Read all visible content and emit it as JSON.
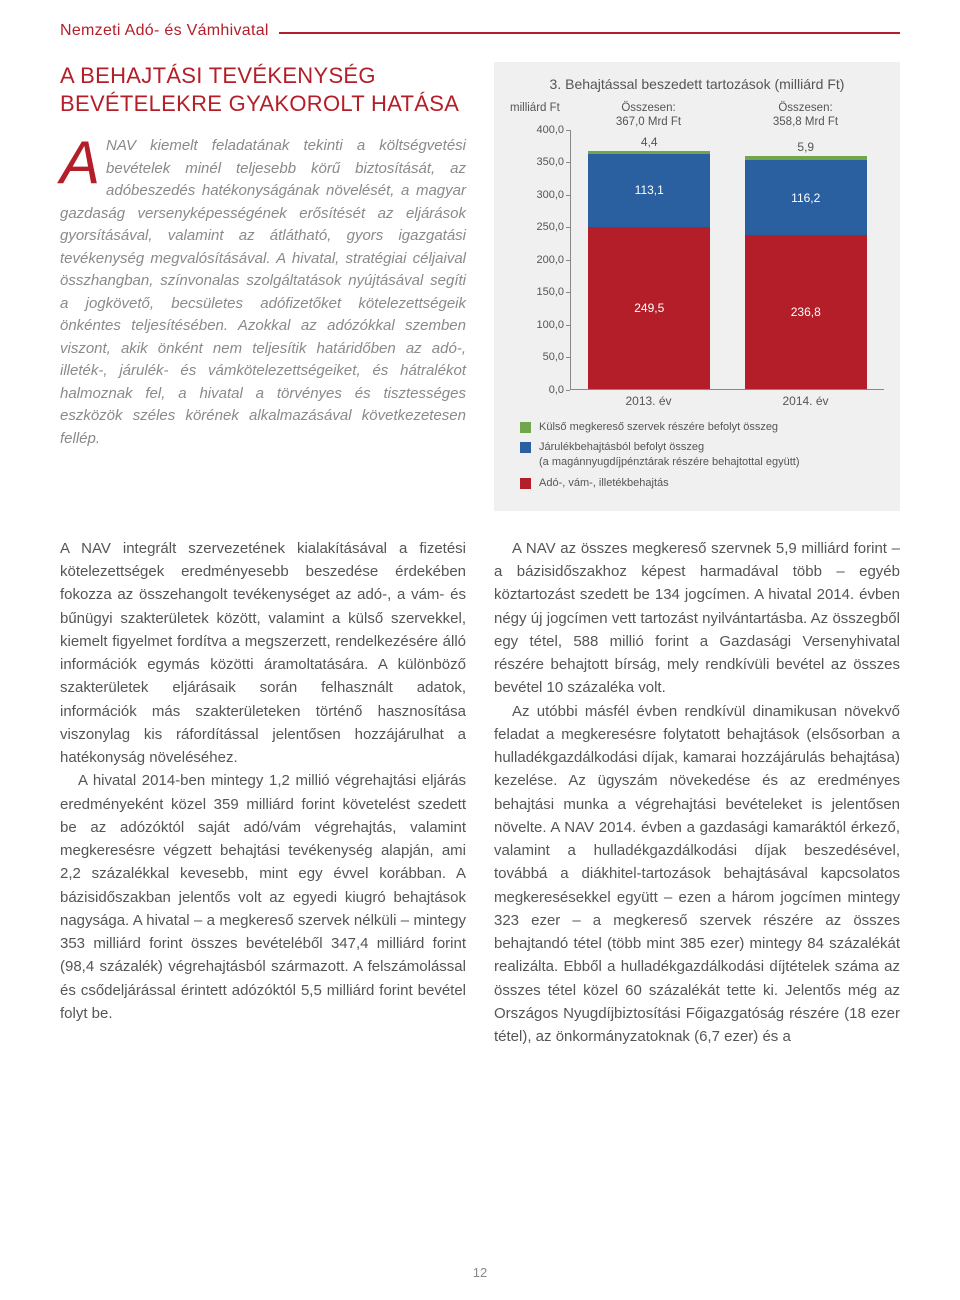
{
  "header": {
    "org": "Nemzeti Adó- és Vámhivatal"
  },
  "section_title": "A BEHAJTÁSI TEVÉKENYSÉG BEVÉTELEKRE GYAKOROLT HATÁSA",
  "dropcap": "A",
  "intro": "NAV kiemelt feladatának tekinti a költségvetési bevételek minél teljesebb körű biztosítását, az adóbeszedés hatékonyságának növelését, a magyar gazdaság versenyképességének erősítését az eljárások gyorsításával, valamint az átlátható, gyors igazgatási tevékenység megvalósításával. A hivatal, stratégiai céljaival összhangban, színvonalas szolgáltatások nyújtásával segíti a jogkövető, becsületes adófizetőket kötelezettségeik önkéntes teljesítésében. Azokkal az adózókkal szemben viszont, akik önként nem teljesítik határidőben az adó-, illeték-, járulék- és vámkötelezettségeiket, és hátralékot halmoznak fel, a hivatal a törvényes és tisztességes eszközök széles körének alkalmazásával következetesen fellép.",
  "body_left": "A NAV integrált szervezetének kialakításával a fizetési kötelezettségek eredményesebb beszedése érdekében fokozza az összehangolt tevékenységet az adó-, a vám- és bűnügyi szakterületek között, valamint a külső szervekkel, kiemelt figyelmet fordítva a megszerzett, rendelkezésére álló információk egymás közötti áramoltatására. A különböző szakterületek eljárásaik során felhasznált adatok, információk más szakterületeken történő hasznosítása viszonylag kis ráfordítással jelentősen hozzájárulhat a hatékonyság növeléséhez.",
  "body_left_2": "A hivatal 2014-ben mintegy 1,2 millió végrehajtási eljárás eredményeként közel 359 milliárd forint követelést szedett be az adózóktól saját adó/vám végrehajtás, valamint megkeresésre végzett behajtási tevékenység alapján, ami 2,2  százalékkal kevesebb, mint egy évvel korábban. A bázisidőszakban jelentős volt az egyedi kiugró behajtások nagysága. A hivatal – a megkereső szervek nélküli – mintegy 353 milliárd forint összes bevételéből 347,4 milliárd forint (98,4 százalék) végrehajtásból származott. A felszámolással és csődeljárással érintett adózóktól 5,5 milliárd forint bevétel folyt be.",
  "body_right_1": "A NAV az összes megkereső szervnek 5,9 milliárd forint – a bázisidőszakhoz képest harmadával több – egyéb köztartozást szedett be 134 jogcímen. A hivatal 2014. évben négy új jogcímen vett tartozást nyilvántartásba. Az összegből egy tétel, 588 millió forint a Gazdasági Versenyhivatal részére behajtott bírság, mely rendkívüli bevétel az összes bevétel 10 százaléka volt.",
  "body_right_2": "Az utóbbi másfél évben rendkívül dinamikusan növekvő feladat a megkeresésre folytatott behajtások (elsősorban a hulladékgazdálkodási díjak, kamarai hozzájárulás behajtása) kezelése. Az ügyszám növekedése és az eredményes behajtási munka a végrehajtási bevételeket is jelentősen növelte. A NAV 2014. évben a gazdasági kamaráktól érkező, valamint a hulladékgazdálkodási díjak beszedésével, továbbá a diákhitel-tartozások behajtásával kapcsolatos megkeresésekkel együtt – ezen a három jogcímen mintegy 323 ezer – a megkereső szervek részére az összes behajtandó tétel (több mint 385 ezer) mintegy 84 százalékát realizálta. Ebből a hulladékgazdálkodási díjtételek száma az összes tétel közel 60 százalékát tette ki. Jelentős még az Országos Nyugdíjbiztosítási Főigazgatóság részére (18 ezer tétel), az önkormányzatoknak (6,7 ezer) és a",
  "page_number": "12",
  "chart": {
    "title": "3. Behajtással beszedett tartozások (milliárd Ft)",
    "y_axis_label": "milliárd Ft",
    "ylim": [
      0,
      400
    ],
    "ytick_step": 50,
    "yticks": [
      "0,0",
      "50,0",
      "100,0",
      "150,0",
      "200,0",
      "250,0",
      "300,0",
      "350,0",
      "400,0"
    ],
    "categories": [
      "2013. év",
      "2014. év"
    ],
    "totals_label": [
      "Összesen:",
      "Összesen:"
    ],
    "totals": [
      "367,0 Mrd Ft",
      "358,8 Mrd Ft"
    ],
    "series": [
      {
        "name": "Adó-, vám-, illetékbehajtás",
        "color": "#b41e28",
        "values": [
          249.5,
          236.8
        ],
        "labels": [
          "249,5",
          "236,8"
        ]
      },
      {
        "name": "Járulékbehajtásból befolyt összeg\n(a magánnyugdíjpénztárak részére behajtottal együtt)",
        "color": "#2a5fa0",
        "values": [
          113.1,
          116.2
        ],
        "labels": [
          "113,1",
          "116,2"
        ]
      },
      {
        "name": "Külső megkereső szervek részére befolyt összeg",
        "color": "#6fa74a",
        "values": [
          4.4,
          5.9
        ],
        "labels": [
          "4,4",
          "5,9"
        ]
      }
    ],
    "legend_order": [
      2,
      1,
      0
    ],
    "background": "#f0f0f0"
  }
}
